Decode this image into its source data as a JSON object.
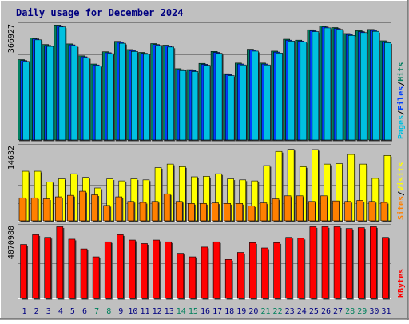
{
  "chart_data": {
    "type": "bar",
    "title": "Daily usage for December 2024",
    "days": [
      "1",
      "2",
      "3",
      "4",
      "5",
      "6",
      "7",
      "8",
      "9",
      "10",
      "11",
      "12",
      "13",
      "14",
      "15",
      "16",
      "17",
      "18",
      "19",
      "20",
      "21",
      "22",
      "23",
      "24",
      "25",
      "26",
      "27",
      "28",
      "29",
      "30",
      "31"
    ],
    "weekend_days": [
      "7",
      "8",
      "14",
      "15",
      "21",
      "22",
      "28",
      "29"
    ],
    "panels": [
      {
        "id": "hits",
        "max_label": "366927",
        "legend": [
          {
            "text": "Pages",
            "color": "#00c0e0"
          },
          {
            "text": "/",
            "color": "#000000"
          },
          {
            "text": "Files",
            "color": "#0040ff"
          },
          {
            "text": "/",
            "color": "#000000"
          },
          {
            "text": "Hits",
            "color": "#008060"
          }
        ],
        "ymax": 366927,
        "series": [
          {
            "name": "Hits",
            "color": "#008060",
            "values": [
              256000,
              325000,
              304000,
              366000,
              306000,
              268000,
              242000,
              281000,
              314000,
              288000,
              279000,
              307000,
              302000,
              227000,
              224000,
              244000,
              282000,
              211000,
              245000,
              289000,
              245000,
              283000,
              321000,
              318000,
              351000,
              363000,
              358000,
              339000,
              348000,
              352000,
              316000
            ]
          },
          {
            "name": "Files",
            "color": "#0040ff",
            "values": [
              253000,
              322000,
              301000,
              363000,
              303000,
              265000,
              239000,
              278000,
              311000,
              285000,
              276000,
              304000,
              299000,
              224000,
              221000,
              241000,
              279000,
              208000,
              242000,
              286000,
              242000,
              280000,
              318000,
              315000,
              348000,
              360000,
              355000,
              336000,
              345000,
              349000,
              313000
            ]
          },
          {
            "name": "Pages",
            "color": "#00c0e0",
            "values": [
              250000,
              319000,
              298000,
              360000,
              300000,
              262000,
              236000,
              275000,
              308000,
              282000,
              273000,
              301000,
              296000,
              221000,
              218000,
              238000,
              276000,
              205000,
              239000,
              283000,
              239000,
              277000,
              315000,
              312000,
              345000,
              357000,
              352000,
              333000,
              342000,
              346000,
              310000
            ]
          }
        ]
      },
      {
        "id": "visits",
        "max_label": "14632",
        "legend": [
          {
            "text": "Sites",
            "color": "#ff8000"
          },
          {
            "text": "/",
            "color": "#000000"
          },
          {
            "text": "Visits",
            "color": "#ffff00"
          }
        ],
        "ymax": 14632,
        "series": [
          {
            "name": "Visits",
            "color": "#ffff00",
            "values": [
              9750,
              9750,
              7650,
              8250,
              9250,
              8550,
              6450,
              8250,
              7850,
              8250,
              8050,
              10450,
              11150,
              10650,
              8650,
              8750,
              9250,
              8250,
              8050,
              7850,
              10850,
              13650,
              14050,
              10650,
              14010,
              11150,
              11250,
              13050,
              11150,
              8350,
              12850
            ]
          },
          {
            "name": "Sites",
            "color": "#ff8000",
            "values": [
              4520,
              4520,
              4320,
              4710,
              5010,
              5810,
              5110,
              3010,
              4710,
              3810,
              3620,
              3810,
              5310,
              3810,
              3410,
              3410,
              3520,
              3410,
              3410,
              2910,
              3520,
              4310,
              4910,
              4910,
              3810,
              4910,
              3910,
              3810,
              4010,
              3810,
              3620
            ]
          }
        ]
      },
      {
        "id": "kbytes",
        "max_label": "4070980",
        "legend": [
          {
            "text": "KBytes",
            "color": "#ff0000"
          }
        ],
        "ymax": 4070980,
        "series": [
          {
            "name": "KBytes",
            "color": "#ff0000",
            "values": [
              3050000,
              3600000,
              3450000,
              4050000,
              3350000,
              2800000,
              2350000,
              3200000,
              3600000,
              3300000,
              3100000,
              3300000,
              3200000,
              2550000,
              2350000,
              2900000,
              3200000,
              2200000,
              2600000,
              3150000,
              2850000,
              3150000,
              3450000,
              3400000,
              4050000,
              4050000,
              4050000,
              3950000,
              4000000,
              4050000,
              3450000
            ]
          }
        ]
      }
    ]
  }
}
